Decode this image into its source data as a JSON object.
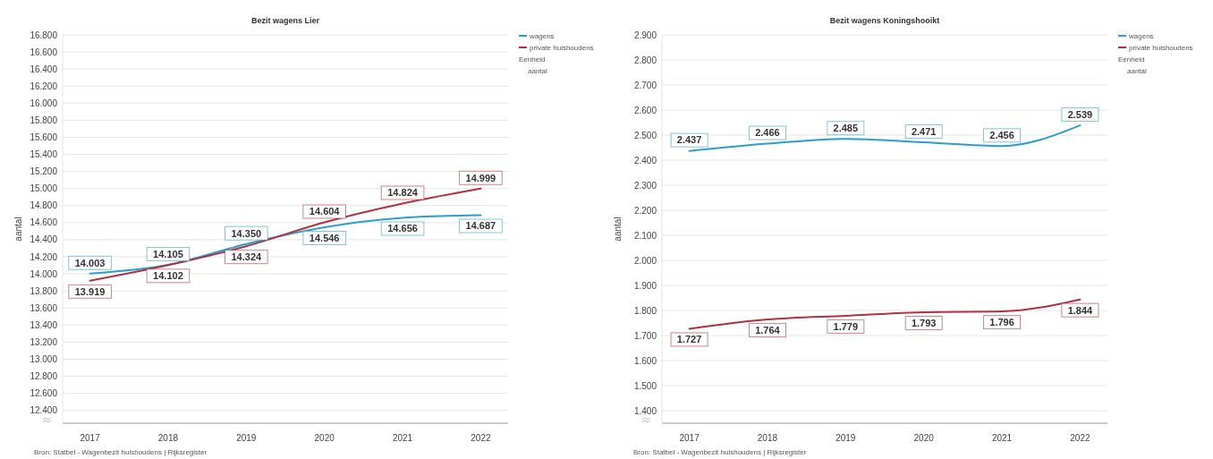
{
  "chart_data": [
    {
      "type": "line",
      "title": "Bezit wagens Lier",
      "ylabel": "aantal",
      "categories": [
        "2017",
        "2018",
        "2019",
        "2020",
        "2021",
        "2022"
      ],
      "series": [
        {
          "name": "wagens",
          "color": "#2a9fc9",
          "values": [
            14003,
            14105,
            14350,
            14546,
            14656,
            14687
          ],
          "value_labels": [
            "14.003",
            "14.105",
            "14.350",
            "14.546",
            "14.656",
            "14.687"
          ]
        },
        {
          "name": "private huishoudens",
          "color": "#b3303f",
          "values": [
            13919,
            14102,
            14324,
            14604,
            14824,
            14999
          ],
          "value_labels": [
            "13.919",
            "14.102",
            "14.324",
            "14.604",
            "14.824",
            "14.999"
          ]
        }
      ],
      "ylim": [
        12250,
        16800
      ],
      "yticks": [
        {
          "value": 12400,
          "label": "12.400"
        },
        {
          "value": 12600,
          "label": "12.600"
        },
        {
          "value": 12800,
          "label": "12.800"
        },
        {
          "value": 13000,
          "label": "13.000"
        },
        {
          "value": 13200,
          "label": "13.200"
        },
        {
          "value": 13400,
          "label": "13.400"
        },
        {
          "value": 13600,
          "label": "13.600"
        },
        {
          "value": 13800,
          "label": "13.800"
        },
        {
          "value": 14000,
          "label": "14.000"
        },
        {
          "value": 14200,
          "label": "14.200"
        },
        {
          "value": 14400,
          "label": "14.400"
        },
        {
          "value": 14600,
          "label": "14.600"
        },
        {
          "value": 14800,
          "label": "14.800"
        },
        {
          "value": 15000,
          "label": "15.000"
        },
        {
          "value": 15200,
          "label": "15.200"
        },
        {
          "value": 15400,
          "label": "15.400"
        },
        {
          "value": 15600,
          "label": "15.600"
        },
        {
          "value": 15800,
          "label": "15.800"
        },
        {
          "value": 16000,
          "label": "16.000"
        },
        {
          "value": 16200,
          "label": "16.200"
        },
        {
          "value": 16400,
          "label": "16.400"
        },
        {
          "value": 16600,
          "label": "16.600"
        },
        {
          "value": 16800,
          "label": "16.800"
        }
      ],
      "grid": "y",
      "legend": "top right",
      "marker": "none",
      "line_style": "solid",
      "annotations": [
        "Eenheid",
        "aantal",
        "Bron: Statbel - Wagenbezit huishoudens | Rijksregister"
      ]
    },
    {
      "type": "line",
      "title": "Bezit wagens Koningshooikt",
      "ylabel": "aantal",
      "categories": [
        "2017",
        "2018",
        "2019",
        "2020",
        "2021",
        "2022"
      ],
      "series": [
        {
          "name": "wagens",
          "color": "#2a9fc9",
          "values": [
            2437,
            2466,
            2485,
            2471,
            2456,
            2539
          ],
          "value_labels": [
            "2.437",
            "2.466",
            "2.485",
            "2.471",
            "2.456",
            "2.539"
          ]
        },
        {
          "name": "private huishoudens",
          "color": "#b3303f",
          "values": [
            1727,
            1764,
            1779,
            1793,
            1796,
            1844
          ],
          "value_labels": [
            "1.727",
            "1.764",
            "1.779",
            "1.793",
            "1.796",
            "1.844"
          ]
        }
      ],
      "ylim": [
        1350,
        2900
      ],
      "yticks": [
        {
          "value": 1400,
          "label": "1.400"
        },
        {
          "value": 1500,
          "label": "1.500"
        },
        {
          "value": 1600,
          "label": "1.600"
        },
        {
          "value": 1700,
          "label": "1.700"
        },
        {
          "value": 1800,
          "label": "1.800"
        },
        {
          "value": 1900,
          "label": "1.900"
        },
        {
          "value": 2000,
          "label": "2.000"
        },
        {
          "value": 2100,
          "label": "2.100"
        },
        {
          "value": 2200,
          "label": "2.200"
        },
        {
          "value": 2300,
          "label": "2.300"
        },
        {
          "value": 2400,
          "label": "2.400"
        },
        {
          "value": 2500,
          "label": "2.500"
        },
        {
          "value": 2600,
          "label": "2.600"
        },
        {
          "value": 2700,
          "label": "2.700"
        },
        {
          "value": 2800,
          "label": "2.800"
        },
        {
          "value": 2900,
          "label": "2.900"
        }
      ],
      "grid": "y",
      "legend": "top right",
      "marker": "none",
      "line_style": "solid",
      "annotations": [
        "Eenheid",
        "aantal",
        "Bron: Statbel - Wagenbezit huishoudens | Rijksregister"
      ]
    }
  ]
}
